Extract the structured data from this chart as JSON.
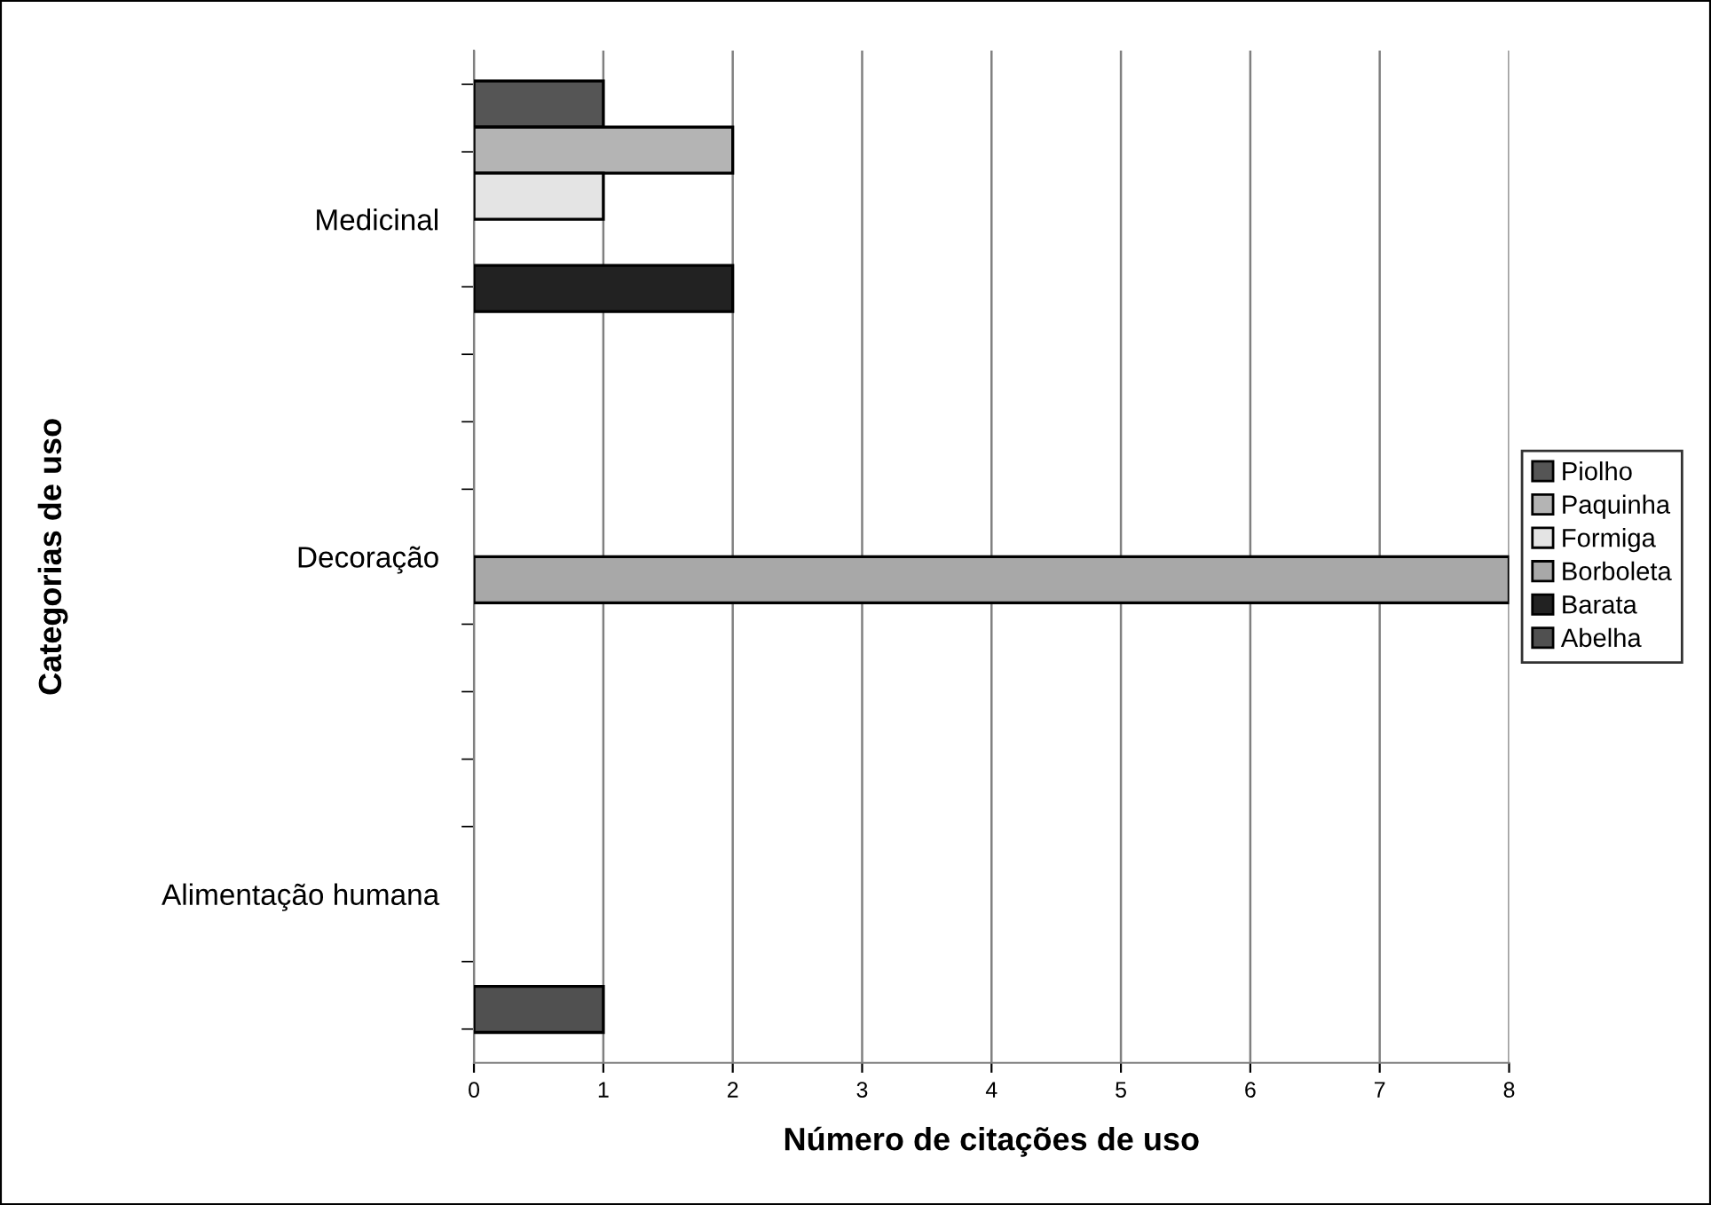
{
  "chart_data": {
    "type": "bar",
    "orientation": "horizontal",
    "categories": [
      "Medicinal",
      "Decoração",
      "Alimentação humana"
    ],
    "series": [
      {
        "name": "Piolho",
        "color": "#555555",
        "values": [
          1,
          null,
          null
        ]
      },
      {
        "name": "Paquinha",
        "color": "#b4b4b4",
        "values": [
          2,
          null,
          null
        ]
      },
      {
        "name": "Formiga",
        "color": "#e4e4e4",
        "values": [
          1,
          null,
          null
        ]
      },
      {
        "name": "Borboleta",
        "color": "#a8a8a8",
        "values": [
          null,
          8,
          null
        ]
      },
      {
        "name": "Barata",
        "color": "#222222",
        "values": [
          2,
          null,
          null
        ]
      },
      {
        "name": "Abelha",
        "color": "#505050",
        "values": [
          null,
          null,
          1
        ]
      }
    ],
    "xlabel": "Número de citações de uso",
    "ylabel": "Categorias de uso",
    "xlim": [
      0,
      8
    ],
    "xticks": [
      0,
      1,
      2,
      3,
      4,
      5,
      6,
      7,
      8
    ],
    "grid": "x",
    "legend": "right"
  }
}
